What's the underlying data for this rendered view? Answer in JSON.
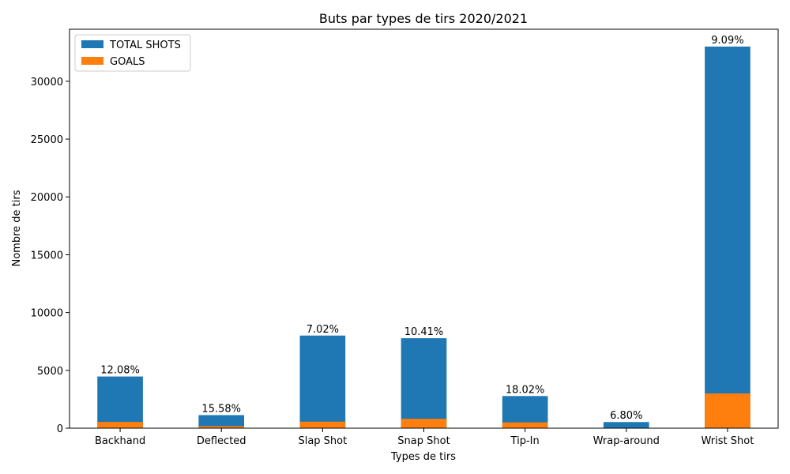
{
  "chart_data": {
    "type": "bar",
    "stacked": "overlay",
    "title": "Buts par types de tirs 2020/2021",
    "xlabel": "Types de tirs",
    "ylabel": "Nombre de tirs",
    "categories": [
      "Backhand",
      "Deflected",
      "Slap Shot",
      "Snap Shot",
      "Tip-In",
      "Wrap-around",
      "Wrist Shot"
    ],
    "series": [
      {
        "name": "TOTAL SHOTS",
        "color": "#1f77b4",
        "values": [
          4470,
          1130,
          8010,
          7780,
          2780,
          530,
          33000
        ]
      },
      {
        "name": "GOALS",
        "color": "#ff7f0e",
        "values": [
          540,
          176,
          562,
          810,
          501,
          36,
          3000
        ]
      }
    ],
    "data_labels": [
      "12.08%",
      "15.58%",
      "7.02%",
      "10.41%",
      "18.02%",
      "6.80%",
      "9.09%"
    ],
    "ylim": [
      0,
      34500
    ],
    "yticks": [
      0,
      5000,
      10000,
      15000,
      20000,
      25000,
      30000
    ],
    "grid": false,
    "legend_position": "top-left"
  }
}
